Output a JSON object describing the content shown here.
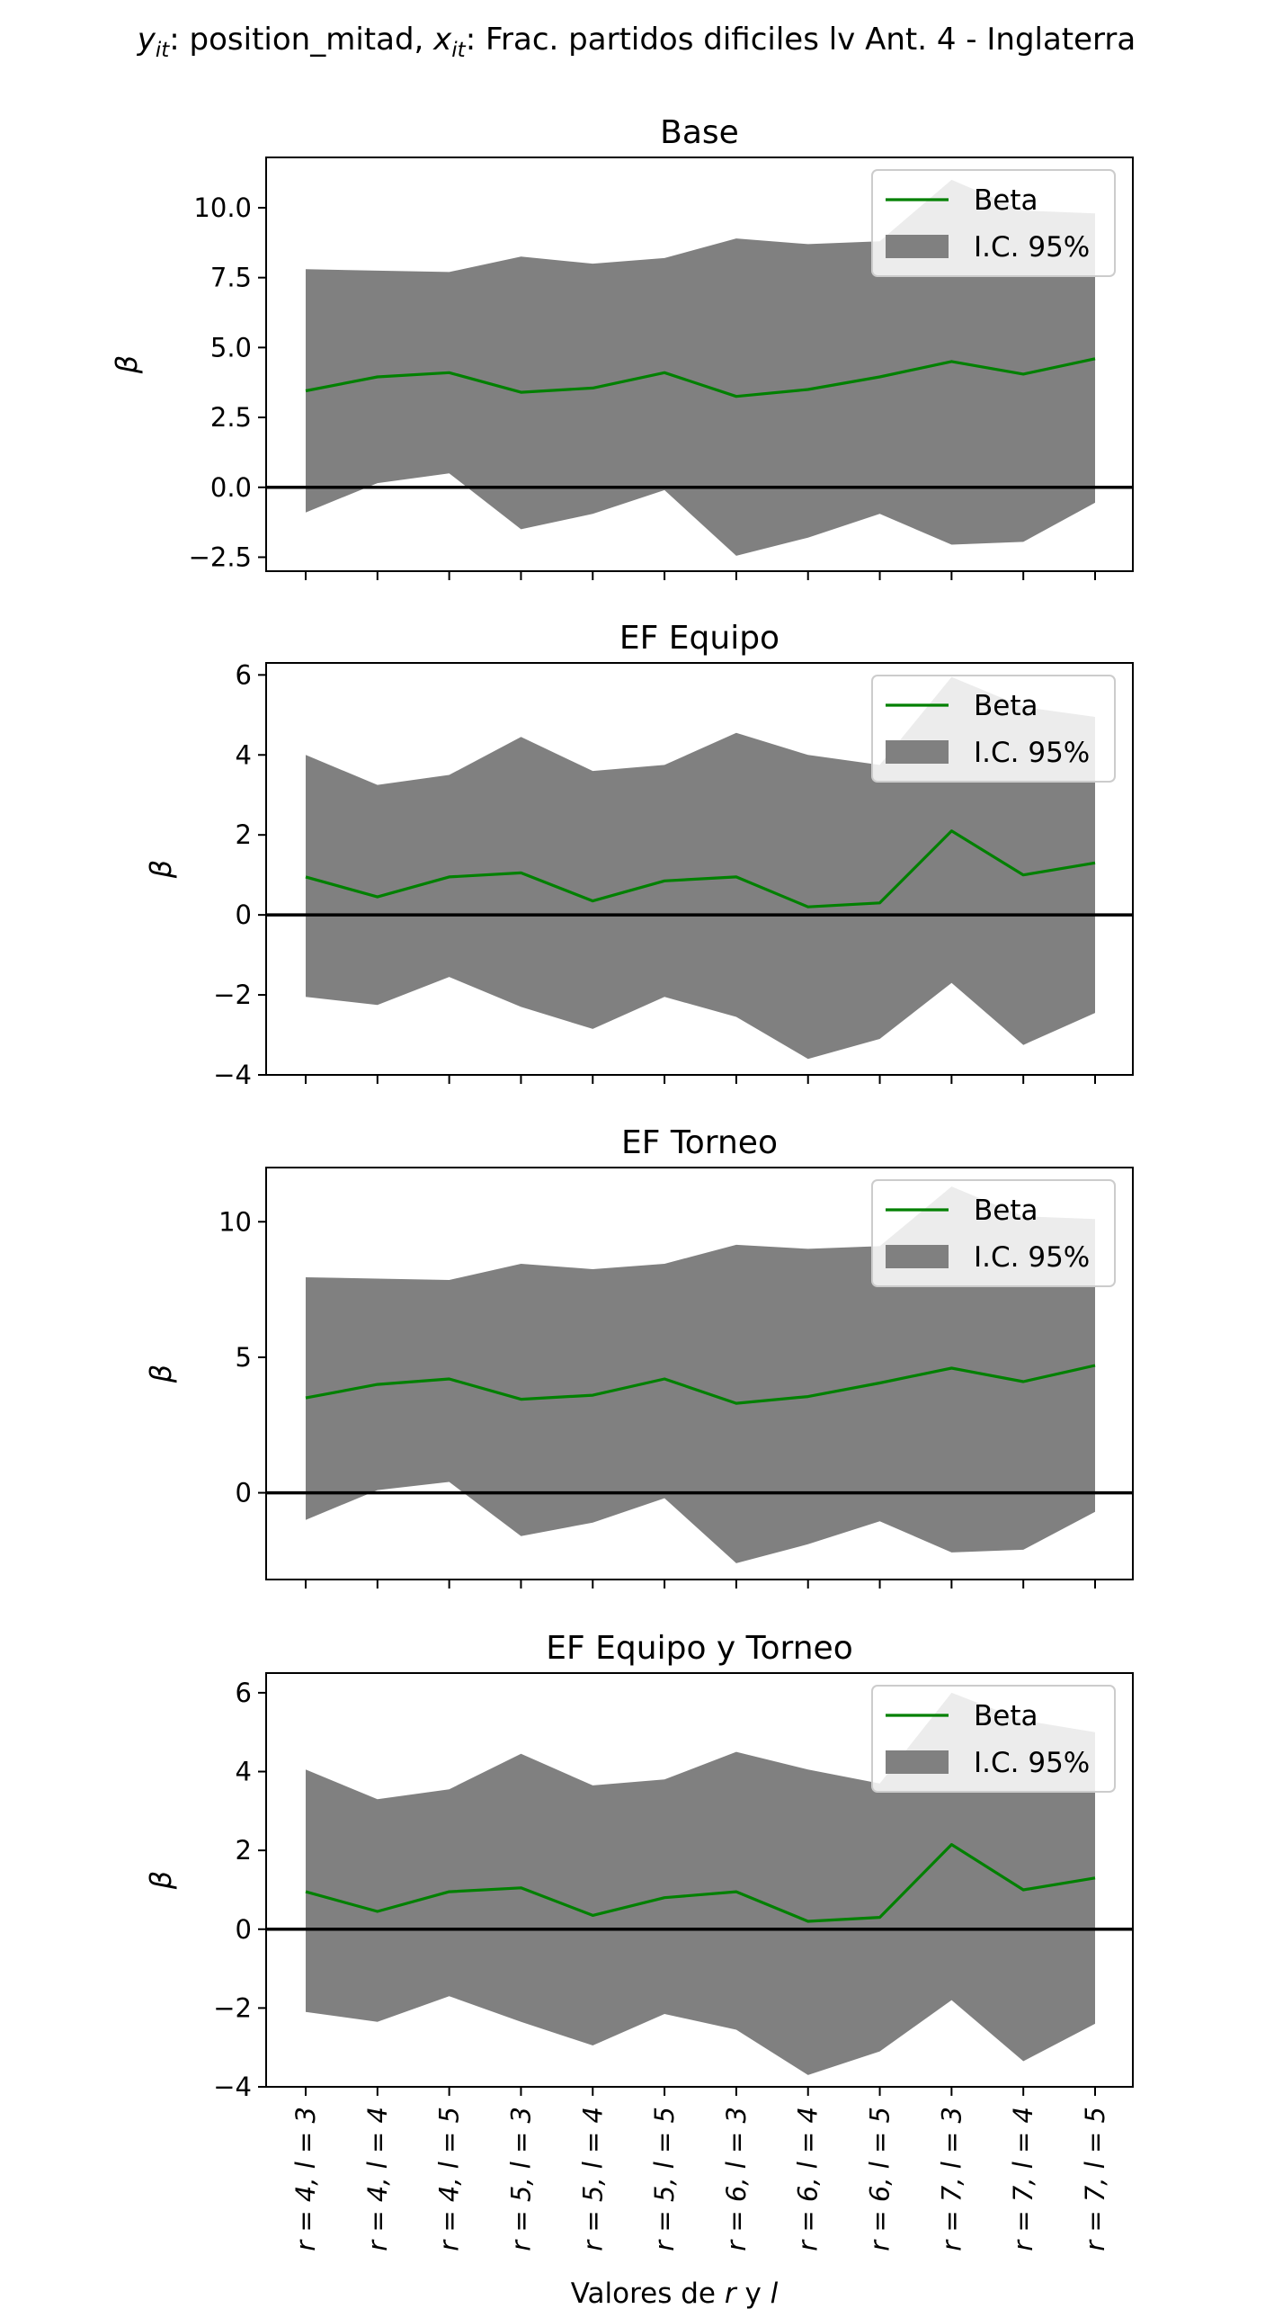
{
  "figure": {
    "title": {
      "y_var": "y",
      "y_sub": "it",
      "y_name": ": position_mitad, ",
      "x_var": "x",
      "x_sub": "it",
      "x_name": ": Frac. partidos dificiles lv Ant. 4 - Inglaterra"
    },
    "xlabel_pre": "Valores de ",
    "xlabel_r": "r",
    "xlabel_mid": " y ",
    "xlabel_l": "l",
    "legend": {
      "line": "Beta",
      "band": "I.C. 95%"
    },
    "colors": {
      "line": "#008000",
      "band": "#808080",
      "zero": "#000000"
    }
  },
  "chart_data": [
    {
      "type": "line",
      "title": "Base",
      "ylabel": "β",
      "categories": [
        "r = 4, l = 3",
        "r = 4, l = 4",
        "r = 4, l = 5",
        "r = 5, l = 3",
        "r = 5, l = 4",
        "r = 5, l = 5",
        "r = 6, l = 3",
        "r = 6, l = 4",
        "r = 6, l = 5",
        "r = 7, l = 3",
        "r = 7, l = 4",
        "r = 7, l = 5"
      ],
      "ylim": [
        -3.0,
        11.8
      ],
      "yticks": [
        -2.5,
        0.0,
        2.5,
        5.0,
        7.5,
        10.0
      ],
      "ytick_labels": [
        "−2.5",
        "0.0",
        "2.5",
        "5.0",
        "7.5",
        "10.0"
      ],
      "series": [
        {
          "name": "Beta",
          "values": [
            3.45,
            3.95,
            4.1,
            3.4,
            3.55,
            4.1,
            3.25,
            3.5,
            3.95,
            4.5,
            4.05,
            4.6
          ]
        },
        {
          "name": "I.C. 95%",
          "lower": [
            -0.9,
            0.15,
            0.5,
            -1.5,
            -0.95,
            -0.1,
            -2.45,
            -1.8,
            -0.95,
            -2.05,
            -1.95,
            -0.55
          ],
          "upper": [
            7.8,
            7.75,
            7.7,
            8.25,
            8.0,
            8.2,
            8.9,
            8.7,
            8.8,
            11.0,
            9.9,
            9.8
          ]
        }
      ],
      "hline": 0
    },
    {
      "type": "line",
      "title": "EF Equipo",
      "ylabel": "β",
      "categories": [
        "r = 4, l = 3",
        "r = 4, l = 4",
        "r = 4, l = 5",
        "r = 5, l = 3",
        "r = 5, l = 4",
        "r = 5, l = 5",
        "r = 6, l = 3",
        "r = 6, l = 4",
        "r = 6, l = 5",
        "r = 7, l = 3",
        "r = 7, l = 4",
        "r = 7, l = 5"
      ],
      "ylim": [
        -4.0,
        6.3
      ],
      "yticks": [
        -4,
        -2,
        0,
        2,
        4,
        6
      ],
      "ytick_labels": [
        "−4",
        "−2",
        "0",
        "2",
        "4",
        "6"
      ],
      "series": [
        {
          "name": "Beta",
          "values": [
            0.95,
            0.45,
            0.95,
            1.05,
            0.35,
            0.85,
            0.95,
            0.2,
            0.3,
            2.1,
            1.0,
            1.3
          ]
        },
        {
          "name": "I.C. 95%",
          "lower": [
            -2.05,
            -2.25,
            -1.55,
            -2.3,
            -2.85,
            -2.05,
            -2.55,
            -3.6,
            -3.1,
            -1.7,
            -3.25,
            -2.45
          ],
          "upper": [
            4.0,
            3.25,
            3.5,
            4.45,
            3.6,
            3.75,
            4.55,
            4.0,
            3.75,
            5.95,
            5.2,
            4.95
          ]
        }
      ],
      "hline": 0
    },
    {
      "type": "line",
      "title": "EF Torneo",
      "ylabel": "β",
      "categories": [
        "r = 4, l = 3",
        "r = 4, l = 4",
        "r = 4, l = 5",
        "r = 5, l = 3",
        "r = 5, l = 4",
        "r = 5, l = 5",
        "r = 6, l = 3",
        "r = 6, l = 4",
        "r = 6, l = 5",
        "r = 7, l = 3",
        "r = 7, l = 4",
        "r = 7, l = 5"
      ],
      "ylim": [
        -3.2,
        12.0
      ],
      "yticks": [
        0,
        5,
        10
      ],
      "ytick_labels": [
        "0",
        "5",
        "10"
      ],
      "series": [
        {
          "name": "Beta",
          "values": [
            3.5,
            4.0,
            4.2,
            3.45,
            3.6,
            4.2,
            3.3,
            3.55,
            4.05,
            4.6,
            4.1,
            4.7
          ]
        },
        {
          "name": "I.C. 95%",
          "lower": [
            -1.0,
            0.1,
            0.4,
            -1.6,
            -1.1,
            -0.2,
            -2.6,
            -1.9,
            -1.05,
            -2.2,
            -2.1,
            -0.7
          ],
          "upper": [
            7.95,
            7.9,
            7.85,
            8.45,
            8.25,
            8.45,
            9.15,
            9.0,
            9.1,
            11.3,
            10.2,
            10.1
          ]
        }
      ],
      "hline": 0
    },
    {
      "type": "line",
      "title": "EF Equipo y Torneo",
      "ylabel": "β",
      "categories": [
        "r = 4, l = 3",
        "r = 4, l = 4",
        "r = 4, l = 5",
        "r = 5, l = 3",
        "r = 5, l = 4",
        "r = 5, l = 5",
        "r = 6, l = 3",
        "r = 6, l = 4",
        "r = 6, l = 5",
        "r = 7, l = 3",
        "r = 7, l = 4",
        "r = 7, l = 5"
      ],
      "ylim": [
        -4.0,
        6.5
      ],
      "yticks": [
        -4,
        -2,
        0,
        2,
        4,
        6
      ],
      "ytick_labels": [
        "−4",
        "−2",
        "0",
        "2",
        "4",
        "6"
      ],
      "series": [
        {
          "name": "Beta",
          "values": [
            0.95,
            0.45,
            0.95,
            1.05,
            0.35,
            0.8,
            0.95,
            0.2,
            0.3,
            2.15,
            1.0,
            1.3
          ]
        },
        {
          "name": "I.C. 95%",
          "lower": [
            -2.1,
            -2.35,
            -1.7,
            -2.35,
            -2.95,
            -2.15,
            -2.55,
            -3.7,
            -3.1,
            -1.8,
            -3.35,
            -2.4
          ],
          "upper": [
            4.05,
            3.3,
            3.55,
            4.45,
            3.65,
            3.8,
            4.5,
            4.05,
            3.7,
            6.0,
            5.3,
            5.0
          ]
        }
      ],
      "hline": 0
    }
  ]
}
